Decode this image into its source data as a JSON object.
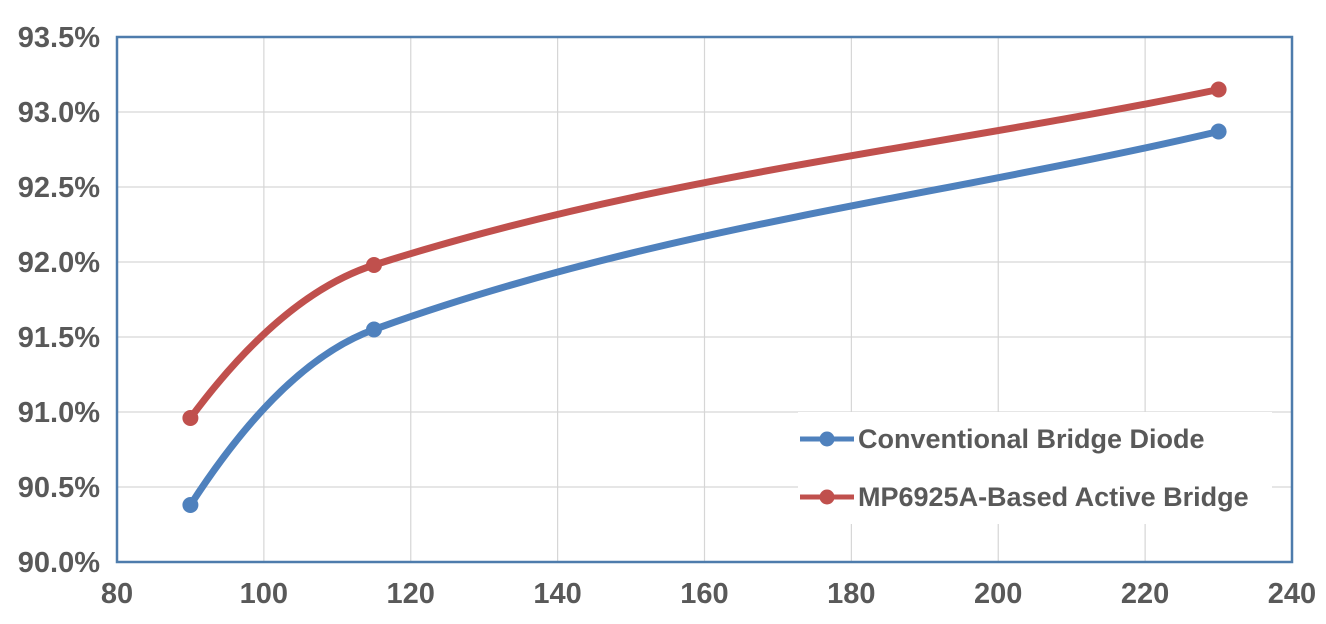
{
  "chart_data": {
    "type": "line",
    "line_style": "smooth",
    "marker": "circle",
    "title": "",
    "xlabel": "",
    "ylabel": "",
    "x": [
      90,
      115,
      230
    ],
    "series": [
      {
        "name": "Conventional Bridge Diode",
        "color": "#4F81BD",
        "values": [
          90.38,
          91.55,
          92.87
        ]
      },
      {
        "name": "MP6925A-Based Active Bridge",
        "color": "#C0504D",
        "values": [
          90.96,
          91.98,
          93.15
        ]
      }
    ],
    "xlim": [
      80,
      240
    ],
    "ylim": [
      90.0,
      93.5
    ],
    "x_ticks": [
      80,
      100,
      120,
      140,
      160,
      180,
      200,
      220,
      240
    ],
    "y_ticks": [
      {
        "value": 90.0,
        "label": "90.0%"
      },
      {
        "value": 90.5,
        "label": "90.5%"
      },
      {
        "value": 91.0,
        "label": "91.0%"
      },
      {
        "value": 91.5,
        "label": "91.5%"
      },
      {
        "value": 92.0,
        "label": "92.0%"
      },
      {
        "value": 92.5,
        "label": "92.5%"
      },
      {
        "value": 93.0,
        "label": "93.0%"
      },
      {
        "value": 93.5,
        "label": "93.5%"
      }
    ],
    "grid": true,
    "legend_position": "inside-bottom-right",
    "style": {
      "grid_color": "#D6D6D6",
      "axis_border_color": "#4E7CAC",
      "tick_text_color": "#595959",
      "background_color": "#FFFFFF"
    }
  }
}
